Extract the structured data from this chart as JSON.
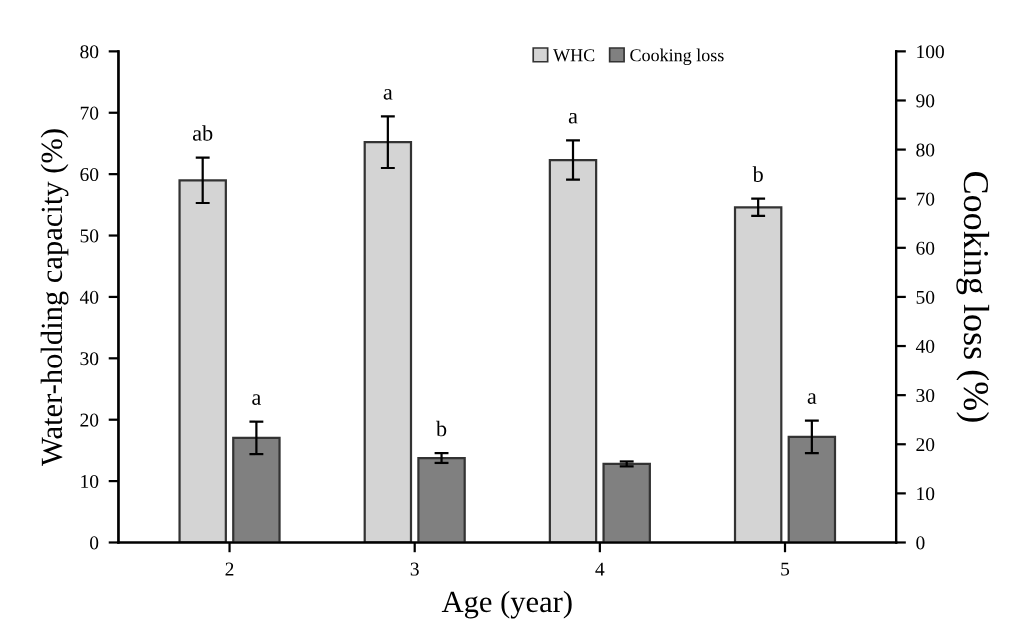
{
  "chart_data": {
    "type": "bar",
    "xlabel": "Age (year)",
    "ylabel": "Water-holding capacity (%)",
    "y2label": "Cooking loss (%)",
    "categories": [
      "2",
      "3",
      "4",
      "5"
    ],
    "series": [
      {
        "name": "WHC",
        "color": "#d4d4d4",
        "values": [
          59.0,
          65.2,
          62.3,
          54.6
        ],
        "errors": [
          3.7,
          4.2,
          3.2,
          1.4
        ],
        "value_labels": [
          "ab",
          "a",
          "a",
          "b"
        ]
      },
      {
        "name": "Cooking loss",
        "color": "#808080",
        "axis": "y2",
        "values": [
          21.3,
          17.2,
          16.0,
          21.5
        ],
        "errors": [
          3.3,
          1.0,
          0.5,
          3.3
        ],
        "value_labels": [
          "a",
          "b",
          null,
          "a"
        ]
      }
    ],
    "ylim": [
      0,
      80
    ],
    "yticks": [
      0,
      10,
      20,
      30,
      40,
      50,
      60,
      70,
      80
    ],
    "y2lim": [
      0,
      100
    ],
    "y2ticks": [
      0,
      10,
      20,
      30,
      40,
      50,
      60,
      70,
      80,
      90,
      100
    ],
    "legend": "top right",
    "grid": false
  }
}
